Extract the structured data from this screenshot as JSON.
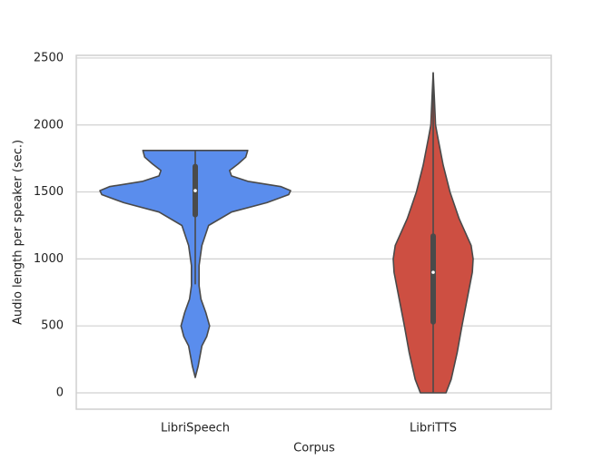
{
  "chart_data": {
    "type": "violin",
    "x_label": "Corpus",
    "y_label": "Audio length per speaker (sec.)",
    "categories": [
      "LibriSpeech",
      "LibriTTS"
    ],
    "ylim": [
      -122,
      2520
    ],
    "yticks": [
      0,
      500,
      1000,
      1500,
      2000,
      2500
    ],
    "grid": true,
    "violins": [
      {
        "color": "#5a8ded",
        "min": 115,
        "q1": 1330,
        "median": 1510,
        "q3": 1690,
        "max": 1810,
        "whisker_low": 810,
        "whisker_high": 1810,
        "density": {
          "y": [
            115,
            200,
            350,
            420,
            500,
            600,
            700,
            800,
            950,
            1100,
            1250,
            1350,
            1420,
            1480,
            1510,
            1540,
            1580,
            1620,
            1660,
            1710,
            1760,
            1810
          ],
          "width": [
            0,
            0.03,
            0.07,
            0.12,
            0.15,
            0.11,
            0.06,
            0.04,
            0.04,
            0.07,
            0.14,
            0.38,
            0.75,
            0.98,
            1.0,
            0.9,
            0.55,
            0.38,
            0.36,
            0.45,
            0.53,
            0.55
          ]
        }
      },
      {
        "color": "#cd4f42",
        "min": 0,
        "q1": 530,
        "median": 900,
        "q3": 1170,
        "max": 2390,
        "whisker_low": 0,
        "whisker_high": 2390,
        "density": {
          "y": [
            0,
            100,
            300,
            500,
            700,
            900,
            1000,
            1100,
            1300,
            1500,
            1700,
            1900,
            2000,
            2200,
            2390
          ],
          "width": [
            0.32,
            0.45,
            0.6,
            0.72,
            0.85,
            0.98,
            1.0,
            0.95,
            0.65,
            0.42,
            0.25,
            0.12,
            0.06,
            0.03,
            0
          ]
        }
      }
    ]
  }
}
